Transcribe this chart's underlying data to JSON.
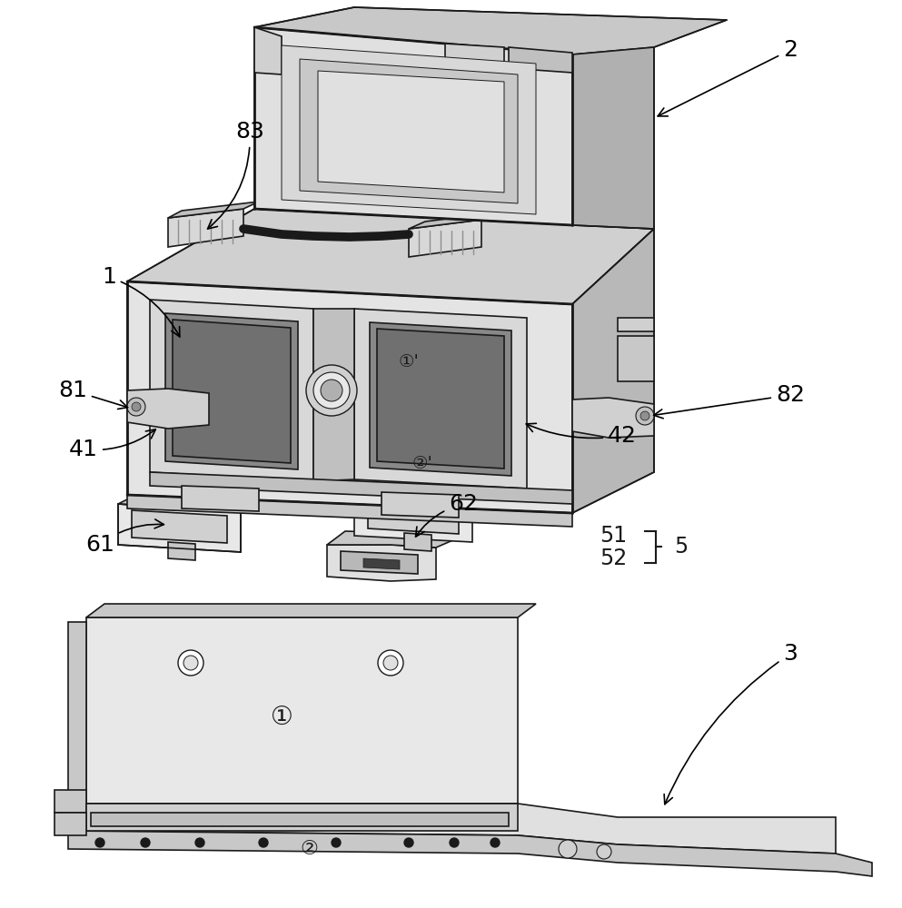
{
  "background_color": "#ffffff",
  "fig_width": 9.93,
  "fig_height": 10.0,
  "dpi": 100,
  "gray_light": "#e8e8e8",
  "gray_mid": "#c8c8c8",
  "gray_dark": "#a0a0a0",
  "gray_vdark": "#606060",
  "line_color": "#1a1a1a",
  "lw_main": 1.2,
  "lw_thin": 0.7,
  "lw_bold": 2.0
}
